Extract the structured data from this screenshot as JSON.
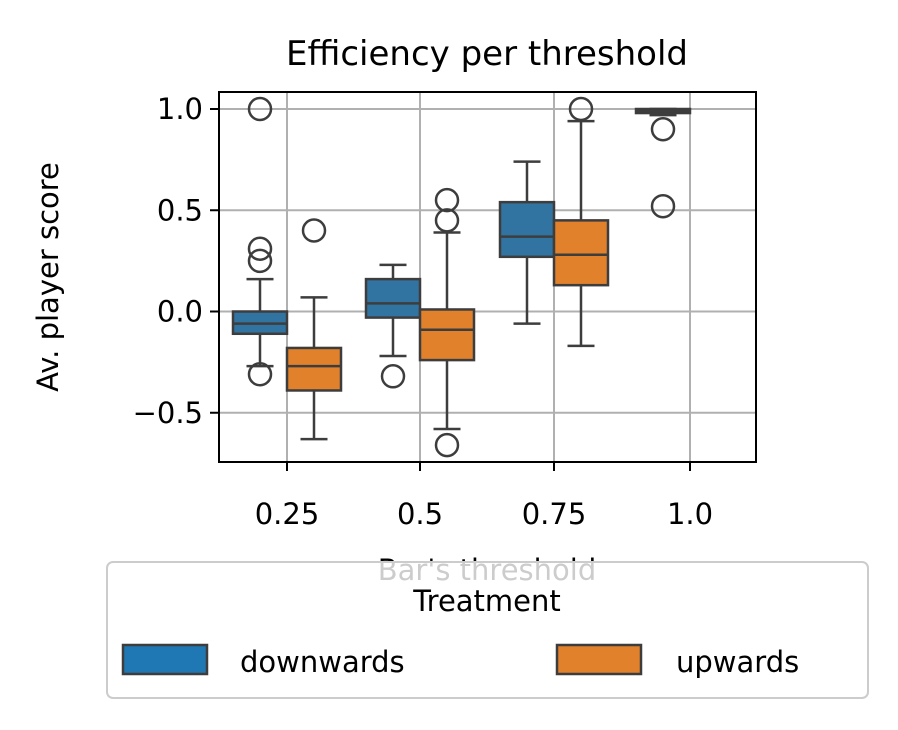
{
  "chart_data": {
    "type": "boxplot",
    "title": "Efficiency per threshold",
    "xlabel": "Bar's threshold",
    "ylabel": "Av. player score",
    "categories": [
      "0.25",
      "0.5",
      "0.75",
      "1.0"
    ],
    "y_ticks": [
      "1.0",
      "0.5",
      "0.0",
      "−0.5"
    ],
    "ylim": [
      -0.75,
      1.08
    ],
    "grid": true,
    "legend": {
      "title": "Treatment",
      "placement": "below",
      "entries": [
        "downwards",
        "upwards"
      ]
    },
    "series": [
      {
        "name": "downwards",
        "color": "#1f77b4",
        "boxes": [
          {
            "category": "0.25",
            "whisker_low": -0.27,
            "q1": -0.11,
            "median": -0.06,
            "q3": 0.0,
            "whisker_high": 0.16,
            "outliers": [
              1.0,
              0.31,
              0.25,
              -0.31
            ]
          },
          {
            "category": "0.5",
            "whisker_low": -0.22,
            "q1": -0.03,
            "median": 0.04,
            "q3": 0.16,
            "whisker_high": 0.23,
            "outliers": [
              -0.32
            ]
          },
          {
            "category": "0.75",
            "whisker_low": -0.06,
            "q1": 0.27,
            "median": 0.37,
            "q3": 0.54,
            "whisker_high": 0.74,
            "outliers": []
          },
          {
            "category": "1.0",
            "whisker_low": 0.97,
            "q1": 0.98,
            "median": 0.99,
            "q3": 1.0,
            "whisker_high": 1.0,
            "outliers": [
              0.9,
              0.52
            ]
          }
        ]
      },
      {
        "name": "upwards",
        "color": "#ff7f0e",
        "boxes": [
          {
            "category": "0.25",
            "whisker_low": -0.63,
            "q1": -0.39,
            "median": -0.27,
            "q3": -0.18,
            "whisker_high": 0.07,
            "outliers": [
              0.4
            ]
          },
          {
            "category": "0.5",
            "whisker_low": -0.58,
            "q1": -0.24,
            "median": -0.09,
            "q3": 0.01,
            "whisker_high": 0.39,
            "outliers": [
              0.55,
              0.45,
              -0.66
            ]
          },
          {
            "category": "0.75",
            "whisker_low": -0.17,
            "q1": 0.13,
            "median": 0.28,
            "q3": 0.45,
            "whisker_high": 0.94,
            "outliers": [
              1.0
            ]
          }
        ]
      }
    ]
  }
}
